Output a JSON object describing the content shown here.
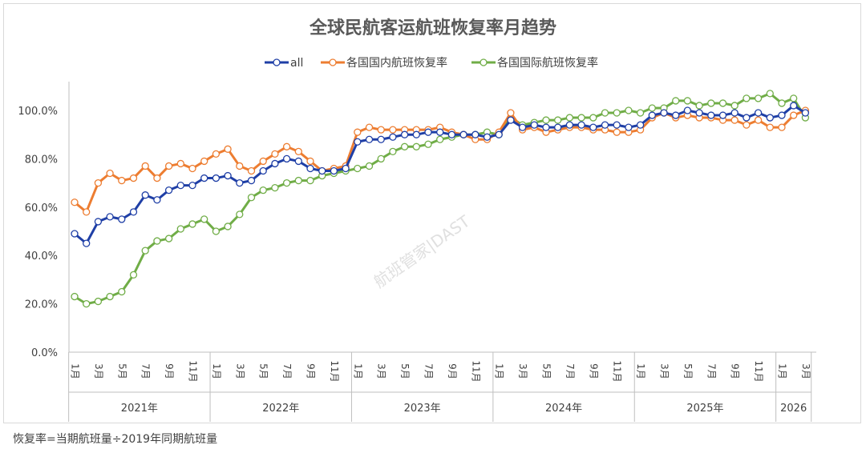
{
  "chart_data": {
    "type": "line",
    "title": "全球民航客运航班恢复率月趋势",
    "footnote": "恢复率=当期航班量÷2019年同期航班量",
    "watermark": "航班管家|DAST",
    "y_axis": {
      "min": 0,
      "max": 1.0,
      "ticks": [
        "0.0%",
        "20.0%",
        "40.0%",
        "60.0%",
        "80.0%",
        "100.0%"
      ]
    },
    "grid": false,
    "legend_position": "top",
    "month_tick_labels": [
      "1月",
      "3月",
      "5月",
      "7月",
      "9月",
      "11月"
    ],
    "years": [
      {
        "label": "2021年",
        "months": 12
      },
      {
        "label": "2022年",
        "months": 12
      },
      {
        "label": "2023年",
        "months": 12
      },
      {
        "label": "2024年",
        "months": 12
      },
      {
        "label": "2025年",
        "months": 12
      },
      {
        "label": "2026",
        "months": 3
      }
    ],
    "series": [
      {
        "name": "all",
        "color": "#1f3fa6",
        "values": [
          0.49,
          0.45,
          0.54,
          0.56,
          0.55,
          0.58,
          0.65,
          0.63,
          0.67,
          0.69,
          0.69,
          0.72,
          0.72,
          0.73,
          0.7,
          0.71,
          0.75,
          0.78,
          0.8,
          0.79,
          0.76,
          0.75,
          0.75,
          0.76,
          0.87,
          0.88,
          0.88,
          0.89,
          0.9,
          0.9,
          0.91,
          0.91,
          0.9,
          0.9,
          0.9,
          0.89,
          0.9,
          0.96,
          0.93,
          0.94,
          0.93,
          0.93,
          0.94,
          0.94,
          0.93,
          0.94,
          0.94,
          0.93,
          0.94,
          0.98,
          0.99,
          0.98,
          1.0,
          0.99,
          0.98,
          0.98,
          0.99,
          0.97,
          0.99,
          0.97,
          0.98,
          1.02,
          0.99
        ]
      },
      {
        "name": "各国国内航班恢复率",
        "color": "#ed7d31",
        "values": [
          0.62,
          0.58,
          0.7,
          0.74,
          0.71,
          0.72,
          0.77,
          0.72,
          0.77,
          0.78,
          0.76,
          0.79,
          0.82,
          0.84,
          0.77,
          0.75,
          0.79,
          0.82,
          0.85,
          0.83,
          0.79,
          0.75,
          0.76,
          0.77,
          0.91,
          0.93,
          0.92,
          0.92,
          0.92,
          0.92,
          0.92,
          0.93,
          0.91,
          0.9,
          0.88,
          0.88,
          0.91,
          0.99,
          0.92,
          0.93,
          0.91,
          0.92,
          0.93,
          0.93,
          0.92,
          0.92,
          0.91,
          0.91,
          0.92,
          0.97,
          0.99,
          0.97,
          0.98,
          0.97,
          0.97,
          0.96,
          0.96,
          0.94,
          0.96,
          0.93,
          0.93,
          0.98,
          1.0
        ]
      },
      {
        "name": "各国国际航班恢复率",
        "color": "#70ad47",
        "values": [
          0.23,
          0.2,
          0.21,
          0.23,
          0.25,
          0.32,
          0.42,
          0.46,
          0.47,
          0.51,
          0.53,
          0.55,
          0.5,
          0.52,
          0.57,
          0.64,
          0.67,
          0.68,
          0.7,
          0.71,
          0.71,
          0.73,
          0.74,
          0.75,
          0.76,
          0.77,
          0.8,
          0.83,
          0.85,
          0.85,
          0.86,
          0.88,
          0.89,
          0.9,
          0.9,
          0.91,
          0.9,
          0.97,
          0.94,
          0.95,
          0.96,
          0.96,
          0.97,
          0.97,
          0.97,
          0.99,
          0.99,
          1.0,
          0.99,
          1.01,
          1.01,
          1.04,
          1.04,
          1.02,
          1.03,
          1.03,
          1.02,
          1.05,
          1.05,
          1.07,
          1.03,
          1.05,
          0.97
        ]
      }
    ]
  }
}
